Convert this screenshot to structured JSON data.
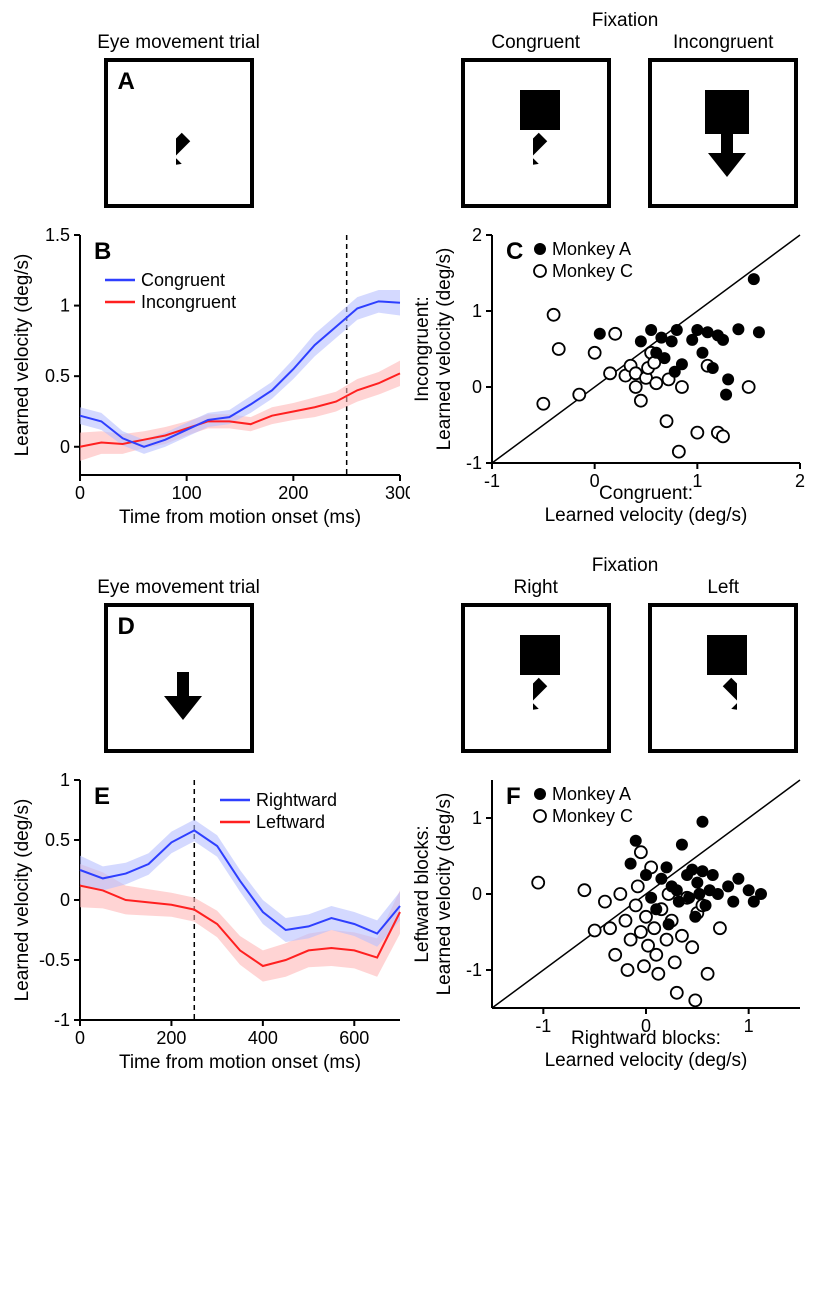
{
  "panelA": {
    "groupTitle_eye": "Eye movement trial",
    "groupTitle_fix": "Fixation",
    "sub_congruent": "Congruent",
    "sub_incongruent": "Incongruent",
    "label": "A"
  },
  "panelB": {
    "label": "B",
    "ylabel": "Learned velocity (deg/s)",
    "xlabel": "Time from motion onset (ms)",
    "legend_blue": "Congruent",
    "legend_red": "Incongruent",
    "xlim": [
      0,
      300
    ],
    "ylim": [
      -0.2,
      1.5
    ],
    "xticks": [
      0,
      100,
      200,
      300
    ],
    "yticks": [
      0,
      0.5,
      1,
      1.5
    ],
    "ytick_labels": [
      "0",
      "0.5",
      "1",
      "1.5"
    ],
    "dashed_x": 250,
    "colors": {
      "blue": "#2e3fff",
      "red": "#ff2020",
      "blue_fill": "#b8bfff",
      "red_fill": "#ffb8b8"
    },
    "x": [
      0,
      20,
      40,
      60,
      80,
      100,
      120,
      140,
      160,
      180,
      200,
      220,
      240,
      260,
      280,
      300
    ],
    "blue_mean": [
      0.22,
      0.18,
      0.06,
      0.0,
      0.05,
      0.12,
      0.19,
      0.21,
      0.3,
      0.4,
      0.55,
      0.72,
      0.85,
      0.98,
      1.03,
      1.02
    ],
    "blue_sem": [
      0.06,
      0.06,
      0.05,
      0.05,
      0.05,
      0.05,
      0.05,
      0.05,
      0.06,
      0.06,
      0.07,
      0.08,
      0.08,
      0.08,
      0.08,
      0.09
    ],
    "red_mean": [
      0.0,
      0.03,
      0.02,
      0.05,
      0.08,
      0.13,
      0.18,
      0.18,
      0.16,
      0.22,
      0.25,
      0.28,
      0.32,
      0.4,
      0.45,
      0.52
    ],
    "red_sem": [
      0.1,
      0.08,
      0.07,
      0.06,
      0.06,
      0.05,
      0.05,
      0.05,
      0.05,
      0.06,
      0.06,
      0.07,
      0.07,
      0.08,
      0.08,
      0.09
    ]
  },
  "panelC": {
    "label": "C",
    "ylabel": "Incongruent:\nLearned velocity (deg/s)",
    "xlabel": "Congruent:\nLearned velocity (deg/s)",
    "legend_filled": "Monkey A",
    "legend_open": "Monkey C",
    "xlim": [
      -1,
      2
    ],
    "ylim": [
      -1,
      2
    ],
    "xticks": [
      -1,
      0,
      1,
      2
    ],
    "yticks": [
      -1,
      0,
      1,
      2
    ],
    "filled_points": [
      [
        0.45,
        0.6
      ],
      [
        0.55,
        0.75
      ],
      [
        0.6,
        0.45
      ],
      [
        0.65,
        0.65
      ],
      [
        0.68,
        0.38
      ],
      [
        0.75,
        0.6
      ],
      [
        0.78,
        0.2
      ],
      [
        0.8,
        0.75
      ],
      [
        0.85,
        0.3
      ],
      [
        0.95,
        0.62
      ],
      [
        1.0,
        0.75
      ],
      [
        1.05,
        0.45
      ],
      [
        1.1,
        0.72
      ],
      [
        1.15,
        0.25
      ],
      [
        1.2,
        0.68
      ],
      [
        1.25,
        0.62
      ],
      [
        1.28,
        -0.1
      ],
      [
        1.3,
        0.1
      ],
      [
        1.4,
        0.76
      ],
      [
        1.55,
        1.42
      ],
      [
        1.6,
        0.72
      ],
      [
        0.05,
        0.7
      ]
    ],
    "open_points": [
      [
        -0.4,
        0.95
      ],
      [
        -0.5,
        -0.22
      ],
      [
        -0.15,
        -0.1
      ],
      [
        -0.35,
        0.5
      ],
      [
        0.0,
        0.45
      ],
      [
        0.15,
        0.18
      ],
      [
        0.2,
        0.7
      ],
      [
        0.3,
        0.15
      ],
      [
        0.35,
        0.28
      ],
      [
        0.4,
        0.0
      ],
      [
        0.4,
        0.18
      ],
      [
        0.45,
        -0.18
      ],
      [
        0.5,
        0.12
      ],
      [
        0.52,
        0.25
      ],
      [
        0.55,
        0.45
      ],
      [
        0.6,
        0.05
      ],
      [
        0.7,
        -0.45
      ],
      [
        0.72,
        0.1
      ],
      [
        0.82,
        -0.85
      ],
      [
        0.85,
        0.0
      ],
      [
        1.0,
        -0.6
      ],
      [
        1.1,
        0.28
      ],
      [
        1.2,
        -0.6
      ],
      [
        1.5,
        0.0
      ],
      [
        1.25,
        -0.65
      ],
      [
        0.58,
        0.32
      ]
    ]
  },
  "panelD": {
    "groupTitle_eye": "Eye movement trial",
    "groupTitle_fix": "Fixation",
    "sub_right": "Right",
    "sub_left": "Left",
    "label": "D"
  },
  "panelE": {
    "label": "E",
    "ylabel": "Learned velocity (deg/s)",
    "xlabel": "Time from motion onset (ms)",
    "legend_blue": "Rightward",
    "legend_red": "Leftward",
    "xlim": [
      0,
      700
    ],
    "ylim": [
      -1,
      1
    ],
    "xticks": [
      0,
      200,
      400,
      600
    ],
    "yticks": [
      -1,
      -0.5,
      0,
      0.5,
      1
    ],
    "ytick_labels": [
      "-1",
      "-0.5",
      "0",
      "0.5",
      "1"
    ],
    "dashed_x": 250,
    "colors": {
      "blue": "#2e3fff",
      "red": "#ff2020",
      "blue_fill": "#b8bfff",
      "red_fill": "#ffb8b8"
    },
    "x": [
      0,
      50,
      100,
      150,
      200,
      250,
      300,
      350,
      400,
      450,
      500,
      550,
      600,
      650,
      700
    ],
    "blue_mean": [
      0.25,
      0.18,
      0.22,
      0.3,
      0.48,
      0.58,
      0.45,
      0.16,
      -0.1,
      -0.25,
      -0.22,
      -0.15,
      -0.2,
      -0.28,
      -0.05
    ],
    "blue_sem": [
      0.12,
      0.1,
      0.09,
      0.09,
      0.09,
      0.09,
      0.09,
      0.09,
      0.1,
      0.1,
      0.1,
      0.1,
      0.1,
      0.11,
      0.12
    ],
    "red_mean": [
      0.12,
      0.08,
      0.0,
      -0.02,
      -0.04,
      -0.08,
      -0.2,
      -0.42,
      -0.55,
      -0.5,
      -0.42,
      -0.4,
      -0.42,
      -0.48,
      -0.1
    ],
    "red_sem": [
      0.18,
      0.15,
      0.12,
      0.11,
      0.1,
      0.1,
      0.11,
      0.12,
      0.13,
      0.14,
      0.14,
      0.15,
      0.15,
      0.16,
      0.18
    ]
  },
  "panelF": {
    "label": "F",
    "ylabel": "Leftward blocks:\nLearned velocity (deg/s)",
    "xlabel": "Rightward blocks:\nLearned velocity (deg/s)",
    "legend_filled": "Monkey A",
    "legend_open": "Monkey C",
    "xlim": [
      -1.5,
      1.5
    ],
    "ylim": [
      -1.5,
      1.5
    ],
    "xticks": [
      -1,
      0,
      1
    ],
    "yticks": [
      -1,
      0,
      1
    ],
    "filled_points": [
      [
        -0.1,
        0.7
      ],
      [
        0.0,
        0.25
      ],
      [
        0.05,
        -0.05
      ],
      [
        0.1,
        -0.2
      ],
      [
        0.15,
        0.2
      ],
      [
        0.2,
        0.35
      ],
      [
        0.22,
        -0.4
      ],
      [
        0.25,
        0.1
      ],
      [
        0.3,
        0.05
      ],
      [
        0.32,
        -0.1
      ],
      [
        0.35,
        0.65
      ],
      [
        0.4,
        0.25
      ],
      [
        0.42,
        -0.05
      ],
      [
        0.45,
        0.32
      ],
      [
        0.48,
        -0.3
      ],
      [
        0.5,
        0.15
      ],
      [
        0.52,
        0.0
      ],
      [
        0.55,
        0.3
      ],
      [
        0.58,
        -0.15
      ],
      [
        0.62,
        0.05
      ],
      [
        0.65,
        0.25
      ],
      [
        0.7,
        0.0
      ],
      [
        0.8,
        0.1
      ],
      [
        0.85,
        -0.1
      ],
      [
        0.9,
        0.2
      ],
      [
        1.0,
        0.05
      ],
      [
        1.05,
        -0.1
      ],
      [
        1.12,
        0.0
      ],
      [
        0.55,
        0.95
      ],
      [
        -0.15,
        0.4
      ]
    ],
    "open_points": [
      [
        -1.05,
        0.15
      ],
      [
        -0.6,
        0.05
      ],
      [
        -0.5,
        -0.48
      ],
      [
        -0.4,
        -0.1
      ],
      [
        -0.35,
        -0.45
      ],
      [
        -0.3,
        -0.8
      ],
      [
        -0.25,
        0.0
      ],
      [
        -0.2,
        -0.35
      ],
      [
        -0.18,
        -1.0
      ],
      [
        -0.15,
        -0.6
      ],
      [
        -0.1,
        -0.15
      ],
      [
        -0.08,
        0.1
      ],
      [
        -0.05,
        -0.5
      ],
      [
        -0.02,
        -0.95
      ],
      [
        0.0,
        -0.3
      ],
      [
        0.02,
        -0.68
      ],
      [
        0.05,
        0.35
      ],
      [
        0.08,
        -0.45
      ],
      [
        0.1,
        -0.8
      ],
      [
        0.12,
        -1.05
      ],
      [
        0.15,
        -0.2
      ],
      [
        0.2,
        -0.6
      ],
      [
        0.22,
        0.0
      ],
      [
        0.25,
        -0.35
      ],
      [
        0.28,
        -0.9
      ],
      [
        0.3,
        -1.3
      ],
      [
        0.35,
        -0.55
      ],
      [
        0.4,
        -0.05
      ],
      [
        0.45,
        -0.7
      ],
      [
        0.5,
        -0.25
      ],
      [
        0.55,
        -0.15
      ],
      [
        0.6,
        -1.05
      ],
      [
        0.72,
        -0.45
      ],
      [
        0.48,
        -1.4
      ],
      [
        -0.05,
        0.55
      ]
    ]
  }
}
